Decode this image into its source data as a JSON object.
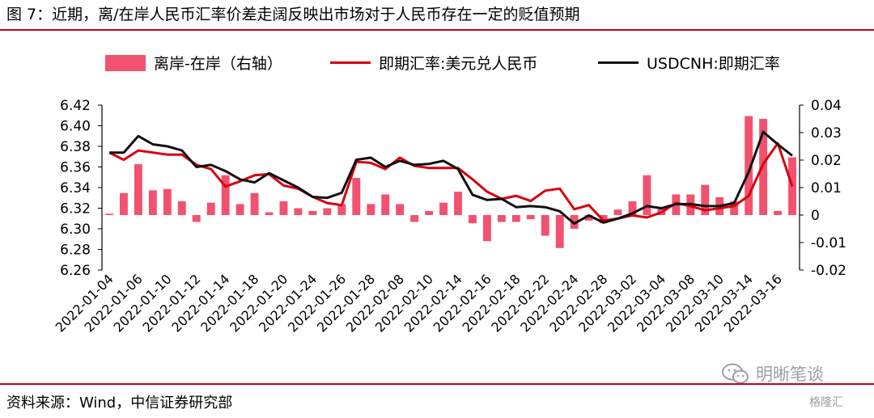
{
  "title": "图 7：近期，离/在岸人民币汇率价差走阔反映出市场对于人民币存在一定的贬值预期",
  "source": "资料来源：Wind，中信证券研究部",
  "watermark": {
    "name": "明晰笔谈",
    "icon": "wechat-icon",
    "brand": "格隆汇"
  },
  "colors": {
    "bar": "#f2516f",
    "red_line": "#d7000f",
    "black_line": "#111111",
    "accent": "#c0001e"
  },
  "chart_data": {
    "type": "bar+line",
    "legend": [
      "离岸-在岸（右轴）",
      "即期汇率:美元兑人民币",
      "USDCNH:即期汇率"
    ],
    "x_tick_labels": [
      "2022-01-04",
      "2022-01-06",
      "2022-01-10",
      "2022-01-12",
      "2022-01-14",
      "2022-01-18",
      "2022-01-20",
      "2022-01-24",
      "2022-01-26",
      "2022-01-28",
      "2022-02-08",
      "2022-02-10",
      "2022-02-14",
      "2022-02-16",
      "2022-02-18",
      "2022-02-22",
      "2022-02-24",
      "2022-02-28",
      "2022-03-02",
      "2022-03-04",
      "2022-03-08",
      "2022-03-10",
      "2022-03-14",
      "2022-03-16"
    ],
    "y_left": {
      "ticks": [
        "6.42",
        "6.40",
        "6.38",
        "6.36",
        "6.34",
        "6.32",
        "6.30",
        "6.28",
        "6.26"
      ],
      "range": [
        6.26,
        6.42
      ]
    },
    "y_right": {
      "ticks": [
        "0.04",
        "0.03",
        "0.02",
        "0.01",
        "0",
        "-0.01",
        "-0.02"
      ],
      "range": [
        -0.02,
        0.04
      ]
    },
    "n_points": 48,
    "series": [
      {
        "name": "离岸-在岸（右轴）",
        "kind": "bar",
        "axis": "right",
        "values": [
          0.0005,
          0.008,
          0.0185,
          0.009,
          0.0095,
          0.005,
          -0.0025,
          0.0045,
          0.0145,
          0.004,
          0.008,
          0.001,
          0.005,
          0.0025,
          0.0015,
          0.0025,
          0.004,
          0.0135,
          0.004,
          0.0075,
          0.004,
          -0.0025,
          0.0015,
          0.0045,
          0.0085,
          -0.003,
          -0.0095,
          -0.0025,
          -0.0025,
          -0.0015,
          -0.0075,
          -0.012,
          -0.005,
          -0.002,
          -0.003,
          0.002,
          0.005,
          0.0145,
          0.0025,
          0.0075,
          0.0075,
          0.011,
          0.0065,
          0.005,
          0.036,
          0.035,
          0.0015,
          0.021
        ]
      },
      {
        "name": "即期汇率:美元兑人民币",
        "kind": "line",
        "axis": "left",
        "values": [
          6.374,
          6.367,
          6.376,
          6.374,
          6.372,
          6.372,
          6.362,
          6.358,
          6.341,
          6.346,
          6.352,
          6.353,
          6.342,
          6.339,
          6.331,
          6.325,
          6.323,
          6.365,
          6.364,
          6.358,
          6.369,
          6.361,
          6.359,
          6.359,
          6.359,
          6.348,
          6.336,
          6.329,
          6.332,
          6.327,
          6.337,
          6.339,
          6.319,
          6.323,
          6.308,
          6.31,
          6.313,
          6.311,
          6.316,
          6.325,
          6.322,
          6.318,
          6.32,
          6.322,
          6.332,
          6.363,
          6.383,
          6.341
        ]
      },
      {
        "name": "USDCNH:即期汇率",
        "kind": "line",
        "axis": "left",
        "values": [
          6.374,
          6.374,
          6.39,
          6.382,
          6.38,
          6.376,
          6.36,
          6.362,
          6.356,
          6.348,
          6.345,
          6.354,
          6.347,
          6.34,
          6.331,
          6.33,
          6.335,
          6.367,
          6.369,
          6.36,
          6.366,
          6.362,
          6.363,
          6.366,
          6.358,
          6.333,
          6.328,
          6.329,
          6.321,
          6.322,
          6.321,
          6.317,
          6.305,
          6.313,
          6.306,
          6.31,
          6.315,
          6.322,
          6.32,
          6.324,
          6.324,
          6.322,
          6.322,
          6.325,
          6.355,
          6.394,
          6.382,
          6.371
        ]
      }
    ]
  }
}
